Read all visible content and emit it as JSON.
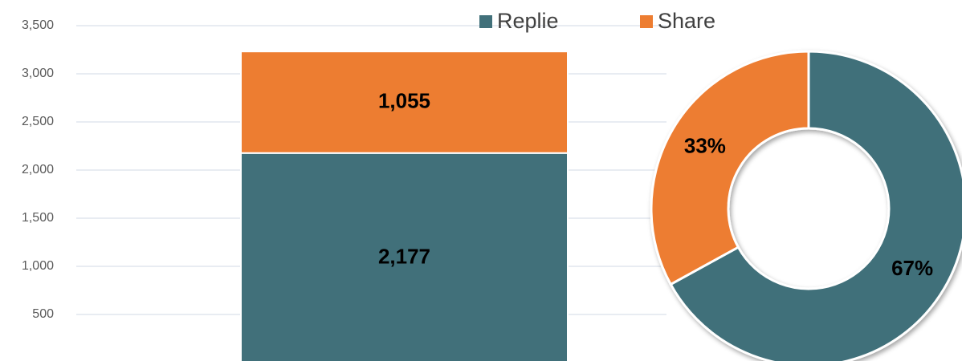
{
  "chart_data": [
    {
      "type": "bar",
      "stacked": true,
      "categories": [
        null
      ],
      "series": [
        {
          "name": "Replie",
          "color": "#41707a",
          "values": [
            2177
          ],
          "value_labels": [
            "2,177"
          ]
        },
        {
          "name": "Share",
          "color": "#ed7d31",
          "values": [
            1055
          ],
          "value_labels": [
            "1,055"
          ]
        }
      ],
      "ylim": [
        0,
        3500
      ],
      "yticks": [
        500,
        {
          "value": 1000,
          "label": "1,000"
        },
        {
          "value": 1500,
          "label": "1,500"
        },
        {
          "value": 2000,
          "label": "2,000"
        },
        {
          "value": 2500,
          "label": "2,500"
        },
        {
          "value": 3000,
          "label": "3,000"
        },
        {
          "value": 3500,
          "label": "3,500"
        }
      ],
      "grid": true,
      "legend": "top"
    },
    {
      "type": "pie",
      "donut": true,
      "values": [
        67,
        33
      ],
      "value_labels": [
        "67%",
        "33%"
      ],
      "colors": [
        "#41707a",
        "#ed7d31"
      ]
    }
  ]
}
